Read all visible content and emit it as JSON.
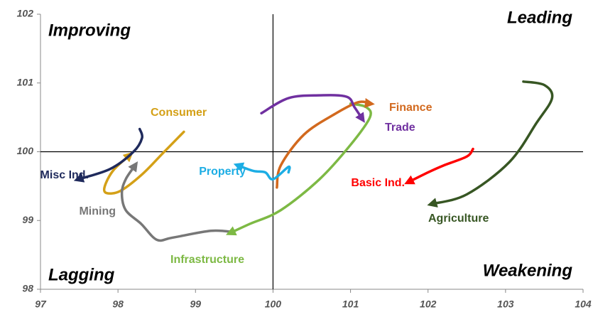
{
  "chart_data": {
    "type": "rotation",
    "quadrants": {
      "top_left": "Improving",
      "top_right": "Leading",
      "bottom_left": "Lagging",
      "bottom_right": "Weakening"
    },
    "center": {
      "x": 100,
      "y": 100
    },
    "xlim": [
      97,
      104
    ],
    "xticks": [
      97,
      98,
      99,
      100,
      101,
      102,
      103,
      104
    ],
    "ylim": [
      98,
      102
    ],
    "yticks": [
      98,
      99,
      100,
      101,
      102
    ],
    "series": [
      {
        "name": "Consumer",
        "color": "#d4a017",
        "x": [
          98.85,
          98.58,
          98.31,
          98.03,
          97.85,
          97.83,
          97.94,
          98.15
        ],
        "y": [
          100.29,
          99.98,
          99.67,
          99.43,
          99.4,
          99.5,
          99.73,
          99.95
        ]
      },
      {
        "name": "Misc Ind.",
        "color": "#1f2a5c",
        "x": [
          98.28,
          98.31,
          98.2,
          97.9,
          97.49
        ],
        "y": [
          100.33,
          100.2,
          100.0,
          99.75,
          99.6
        ]
      },
      {
        "name": "Mining",
        "color": "#777777",
        "x": [
          99.5,
          99.2,
          98.7,
          98.5,
          98.3,
          98.1,
          98.05,
          98.1,
          98.22
        ],
        "y": [
          98.83,
          98.85,
          98.75,
          98.72,
          98.95,
          99.15,
          99.4,
          99.6,
          99.8
        ]
      },
      {
        "name": "Infrastructure",
        "color": "#7db944",
        "x": [
          101.0,
          101.2,
          101.25,
          101.0,
          100.6,
          100.1,
          99.7,
          99.45
        ],
        "y": [
          100.7,
          100.65,
          100.5,
          100.1,
          99.6,
          99.15,
          98.95,
          98.82
        ]
      },
      {
        "name": "Finance",
        "color": "#d2691e",
        "x": [
          100.05,
          100.1,
          100.4,
          100.8,
          101.1,
          101.25
        ],
        "y": [
          99.48,
          99.8,
          100.25,
          100.55,
          100.72,
          100.7
        ]
      },
      {
        "name": "Trade",
        "color": "#7030a0",
        "x": [
          99.85,
          100.2,
          100.6,
          100.95,
          101.05,
          101.15
        ],
        "y": [
          100.56,
          100.78,
          100.82,
          100.8,
          100.65,
          100.48
        ]
      },
      {
        "name": "Property",
        "color": "#1cade4",
        "x": [
          100.2,
          100.2,
          100.0,
          99.9,
          99.75,
          99.55
        ],
        "y": [
          99.7,
          99.78,
          99.6,
          99.7,
          99.72,
          99.8
        ]
      },
      {
        "name": "Basic Ind.",
        "color": "#ff0000",
        "x": [
          102.58,
          102.5,
          102.2,
          102.0,
          101.75
        ],
        "y": [
          100.04,
          99.93,
          99.8,
          99.7,
          99.56
        ]
      },
      {
        "name": "Agriculture",
        "color": "#375623",
        "x": [
          103.23,
          103.5,
          103.6,
          103.4,
          103.05,
          102.5,
          102.05
        ],
        "y": [
          101.02,
          100.97,
          100.78,
          100.42,
          99.85,
          99.38,
          99.24
        ]
      }
    ]
  }
}
